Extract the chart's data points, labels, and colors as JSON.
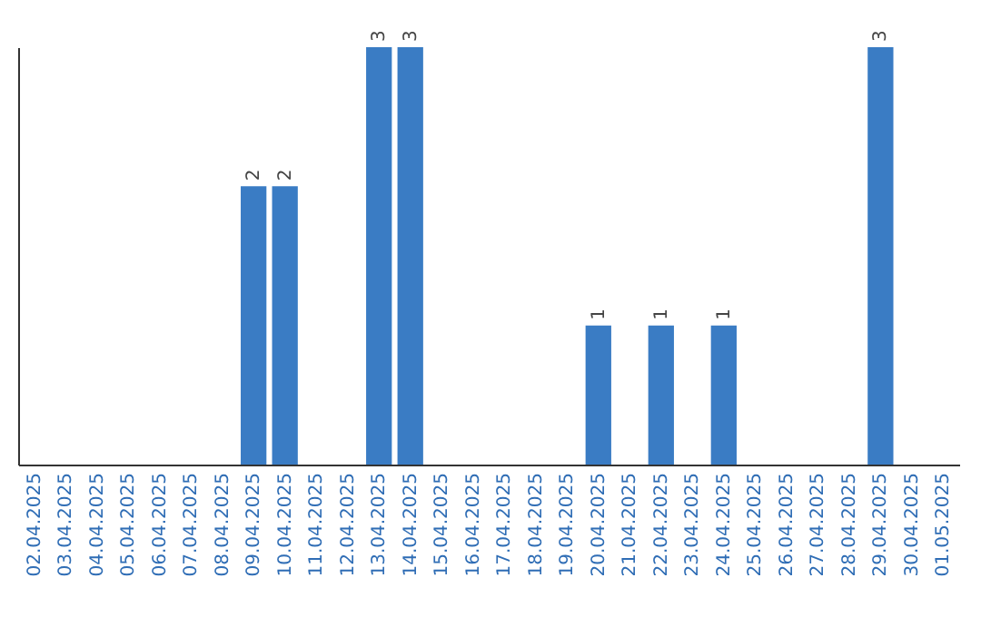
{
  "chart_data": {
    "type": "bar",
    "categories": [
      "02.04.2025",
      "03.04.2025",
      "04.04.2025",
      "05.04.2025",
      "06.04.2025",
      "07.04.2025",
      "08.04.2025",
      "09.04.2025",
      "10.04.2025",
      "11.04.2025",
      "12.04.2025",
      "13.04.2025",
      "14.04.2025",
      "15.04.2025",
      "16.04.2025",
      "17.04.2025",
      "18.04.2025",
      "19.04.2025",
      "20.04.2025",
      "21.04.2025",
      "22.04.2025",
      "23.04.2025",
      "24.04.2025",
      "25.04.2025",
      "26.04.2025",
      "27.04.2025",
      "28.04.2025",
      "29.04.2025",
      "30.04.2025",
      "01.05.2025"
    ],
    "values": [
      0,
      0,
      0,
      0,
      0,
      0,
      0,
      2,
      2,
      0,
      0,
      3,
      3,
      0,
      0,
      0,
      0,
      0,
      1,
      0,
      1,
      0,
      1,
      0,
      0,
      0,
      0,
      3,
      0,
      0
    ],
    "color": "#3a7cc4",
    "ylim": [
      0,
      3
    ],
    "value_labels": [
      null,
      null,
      null,
      null,
      null,
      null,
      null,
      "2",
      "2",
      null,
      null,
      "3",
      "3",
      null,
      null,
      null,
      null,
      null,
      "1",
      null,
      "1",
      null,
      "1",
      null,
      null,
      null,
      null,
      "3",
      null,
      null
    ],
    "tick_labels": "x"
  }
}
